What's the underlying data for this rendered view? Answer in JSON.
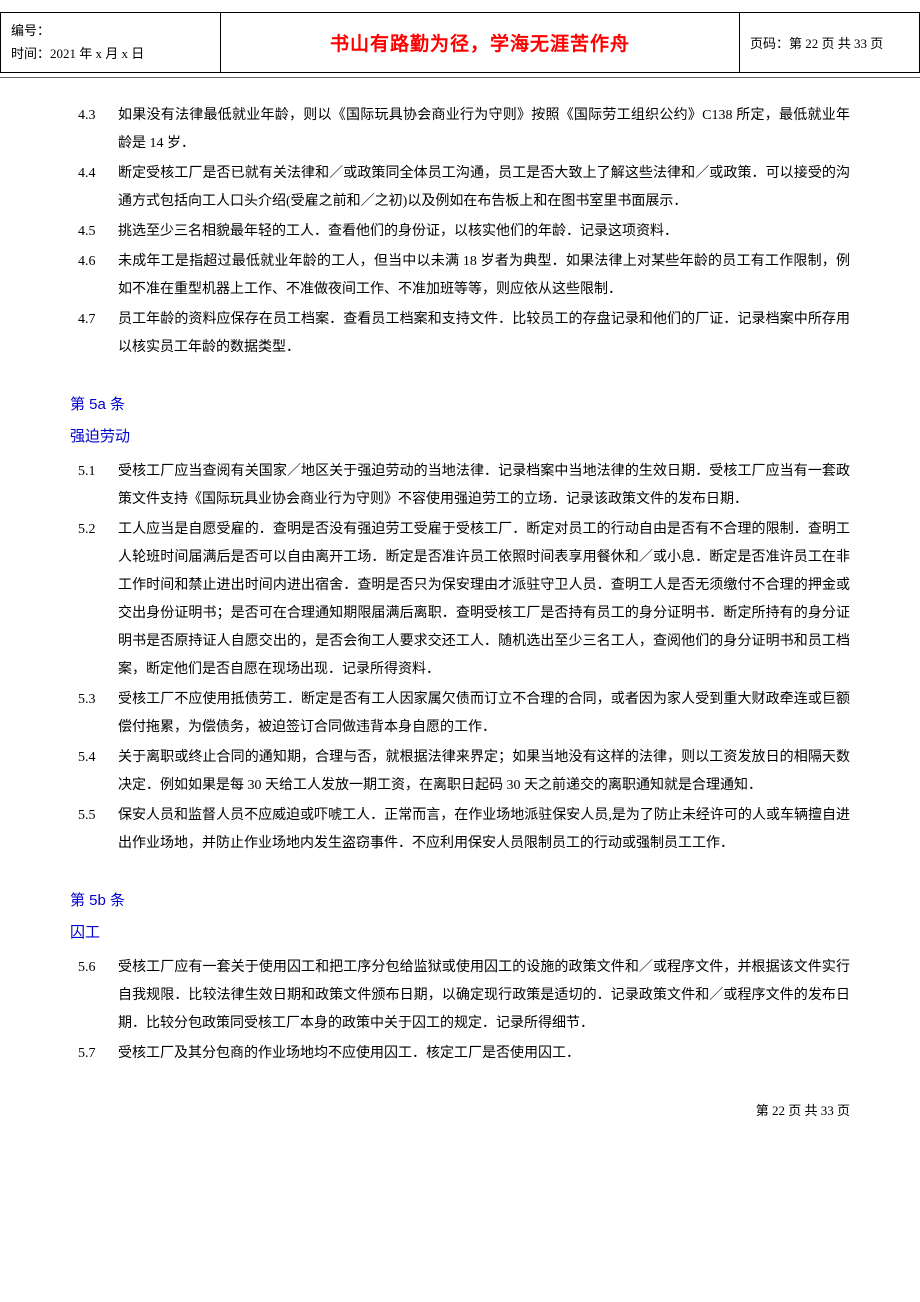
{
  "header": {
    "left_line1_label": "编号：",
    "left_line2_label": "时间：",
    "left_line2_value": "2021 年 x 月 x 日",
    "center_motto": "书山有路勤为径，学海无涯苦作舟",
    "right_label": "页码：",
    "right_value": "第 22 页  共 33 页"
  },
  "colors": {
    "motto_color": "#ff0000",
    "section_color": "#0000cc",
    "text_color": "#000000",
    "background": "#ffffff",
    "border": "#000000"
  },
  "typography": {
    "body_fontsize": 14,
    "motto_fontsize": 19,
    "section_fontsize": 15,
    "line_height": 2.0
  },
  "block1_items": [
    {
      "num": "4.3",
      "text": "如果没有法律最低就业年龄，则以《国际玩具协会商业行为守则》按照《国际劳工组织公约》C138 所定，最低就业年龄是 14 岁．"
    },
    {
      "num": "4.4",
      "text": "断定受核工厂是否已就有关法律和／或政策同全体员工沟通，员工是否大致上了解这些法律和／或政策．可以接受的沟通方式包括向工人口头介绍(受雇之前和／之初)以及例如在布告板上和在图书室里书面展示．"
    },
    {
      "num": "4.5",
      "text": "挑选至少三名相貌最年轻的工人．查看他们的身份证，以核实他们的年龄．记录这项资料．"
    },
    {
      "num": "4.6",
      "text": "未成年工是指超过最低就业年龄的工人，但当中以未满 18 岁者为典型．如果法律上对某些年龄的员工有工作限制，例如不准在重型机器上工作、不准做夜间工作、不准加班等等，则应依从这些限制．"
    },
    {
      "num": "4.7",
      "text": "员工年龄的资料应保存在员工档案．查看员工档案和支持文件．比较员工的存盘记录和他们的厂证．记录档案中所存用以核实员工年龄的数据类型．"
    }
  ],
  "section5a": {
    "title": "第 5a 条",
    "subtitle": "强迫劳动",
    "items": [
      {
        "num": "5.1",
        "text": "受核工厂应当查阅有关国家／地区关于强迫劳动的当地法律．记录档案中当地法律的生效日期．受核工厂应当有一套政策文件支持《国际玩具业协会商业行为守则》不容使用强迫劳工的立场．记录该政策文件的发布日期．"
      },
      {
        "num": "5.2",
        "text": "工人应当是自愿受雇的．查明是否没有强迫劳工受雇于受核工厂．断定对员工的行动自由是否有不合理的限制．查明工人轮班时间届满后是否可以自由离开工场．断定是否准许员工依照时间表享用餐休和／或小息．断定是否准许员工在非工作时间和禁止进出时间内进出宿舍．查明是否只为保安理由才派驻守卫人员．查明工人是否无须缴付不合理的押金或交出身份证明书；是否可在合理通知期限届满后离职．查明受核工厂是否持有员工的身分证明书．断定所持有的身分证明书是否原持证人自愿交出的，是否会徇工人要求交还工人．随机选出至少三名工人，查阅他们的身分证明书和员工档案，断定他们是否自愿在现场出现．记录所得资料．"
      },
      {
        "num": "5.3",
        "text": "受核工厂不应使用抵债劳工．断定是否有工人因家属欠债而订立不合理的合同，或者因为家人受到重大财政牵连或巨额偿付拖累，为偿债务，被迫签订合同做违背本身自愿的工作．"
      },
      {
        "num": "5.4",
        "text": "关于离职或终止合同的通知期，合理与否，就根据法律来界定；如果当地没有这样的法律，则以工资发放日的相隔天数决定．例如如果是每 30 天给工人发放一期工资，在离职日起码 30 天之前递交的离职通知就是合理通知．"
      },
      {
        "num": "5.5",
        "text": "保安人员和监督人员不应威迫或吓唬工人．正常而言，在作业场地派驻保安人员,是为了防止未经许可的人或车辆擅自进出作业场地，并防止作业场地内发生盗窃事件．不应利用保安人员限制员工的行动或强制员工工作．"
      }
    ]
  },
  "section5b": {
    "title": "第 5b 条",
    "subtitle": "囚工",
    "items": [
      {
        "num": "5.6",
        "text": "受核工厂应有一套关于使用囚工和把工序分包给监狱或使用囚工的设施的政策文件和／或程序文件，并根据该文件实行自我规限．比较法律生效日期和政策文件颁布日期，以确定现行政策是适切的．记录政策文件和／或程序文件的发布日期．比较分包政策同受核工厂本身的政策中关于囚工的规定．记录所得细节．"
      },
      {
        "num": "5.7",
        "text": "受核工厂及其分包商的作业场地均不应使用囚工．核定工厂是否使用囚工．"
      }
    ]
  },
  "footer": {
    "text": "第 22 页 共 33 页"
  }
}
